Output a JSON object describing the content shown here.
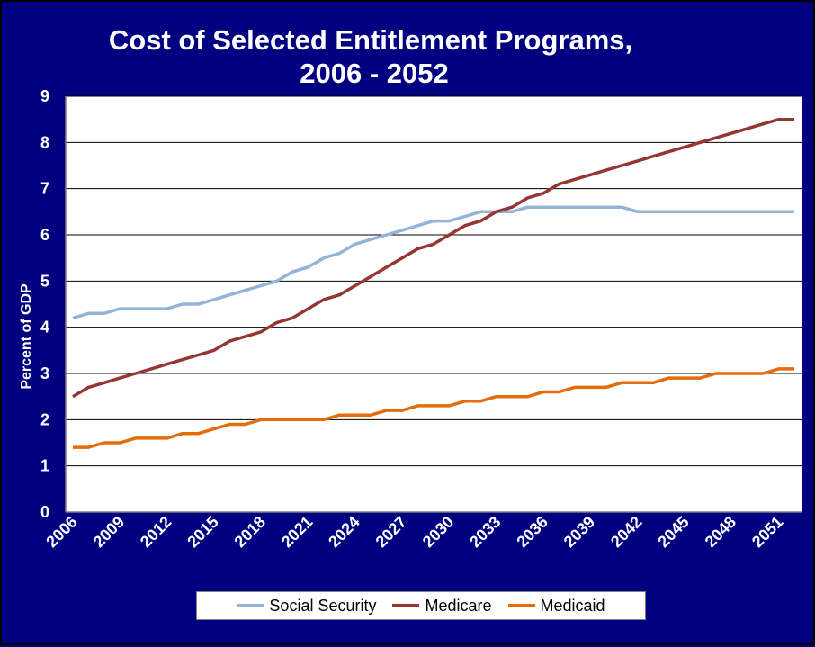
{
  "chart_data": {
    "type": "line",
    "title_lines": [
      "Cost of Selected Entitlement Programs,",
      "2006 - 2052"
    ],
    "ylabel": "Percent of GDP",
    "xlabel": "",
    "ylim": [
      0,
      9
    ],
    "yticks": [
      0,
      1,
      2,
      3,
      4,
      5,
      6,
      7,
      8,
      9
    ],
    "xlim": [
      2006,
      2052
    ],
    "xtick_labels": [
      "2006",
      "2009",
      "2012",
      "2015",
      "2018",
      "2021",
      "2024",
      "2027",
      "2030",
      "2033",
      "2036",
      "2039",
      "2042",
      "2045",
      "2048",
      "2051"
    ],
    "grid": true,
    "legend_position": "bottom",
    "x": [
      2006,
      2007,
      2008,
      2009,
      2010,
      2011,
      2012,
      2013,
      2014,
      2015,
      2016,
      2017,
      2018,
      2019,
      2020,
      2021,
      2022,
      2023,
      2024,
      2025,
      2026,
      2027,
      2028,
      2029,
      2030,
      2031,
      2032,
      2033,
      2034,
      2035,
      2036,
      2037,
      2038,
      2039,
      2040,
      2041,
      2042,
      2043,
      2044,
      2045,
      2046,
      2047,
      2048,
      2049,
      2050,
      2051,
      2052
    ],
    "series": [
      {
        "name": "Social Security",
        "color": "#95b3d7",
        "values": [
          4.2,
          4.3,
          4.3,
          4.4,
          4.4,
          4.4,
          4.4,
          4.5,
          4.5,
          4.6,
          4.7,
          4.8,
          4.9,
          5.0,
          5.2,
          5.3,
          5.5,
          5.6,
          5.8,
          5.9,
          6.0,
          6.1,
          6.2,
          6.3,
          6.3,
          6.4,
          6.5,
          6.5,
          6.5,
          6.6,
          6.6,
          6.6,
          6.6,
          6.6,
          6.6,
          6.6,
          6.5,
          6.5,
          6.5,
          6.5,
          6.5,
          6.5,
          6.5,
          6.5,
          6.5,
          6.5,
          6.5
        ]
      },
      {
        "name": "Medicare",
        "color": "#943634",
        "values": [
          2.5,
          2.7,
          2.8,
          2.9,
          3.0,
          3.1,
          3.2,
          3.3,
          3.4,
          3.5,
          3.7,
          3.8,
          3.9,
          4.1,
          4.2,
          4.4,
          4.6,
          4.7,
          4.9,
          5.1,
          5.3,
          5.5,
          5.7,
          5.8,
          6.0,
          6.2,
          6.3,
          6.5,
          6.6,
          6.8,
          6.9,
          7.1,
          7.2,
          7.3,
          7.4,
          7.5,
          7.6,
          7.7,
          7.8,
          7.9,
          8.0,
          8.1,
          8.2,
          8.3,
          8.4,
          8.5,
          8.5
        ]
      },
      {
        "name": "Medicaid",
        "color": "#e46c0a",
        "values": [
          1.4,
          1.4,
          1.5,
          1.5,
          1.6,
          1.6,
          1.6,
          1.7,
          1.7,
          1.8,
          1.9,
          1.9,
          2.0,
          2.0,
          2.0,
          2.0,
          2.0,
          2.1,
          2.1,
          2.1,
          2.2,
          2.2,
          2.3,
          2.3,
          2.3,
          2.4,
          2.4,
          2.5,
          2.5,
          2.5,
          2.6,
          2.6,
          2.7,
          2.7,
          2.7,
          2.8,
          2.8,
          2.8,
          2.9,
          2.9,
          2.9,
          3.0,
          3.0,
          3.0,
          3.0,
          3.1,
          3.1
        ]
      }
    ]
  },
  "colors": {
    "background": "#000080",
    "plot_area": "#ffffff",
    "text": "#ffffff"
  }
}
